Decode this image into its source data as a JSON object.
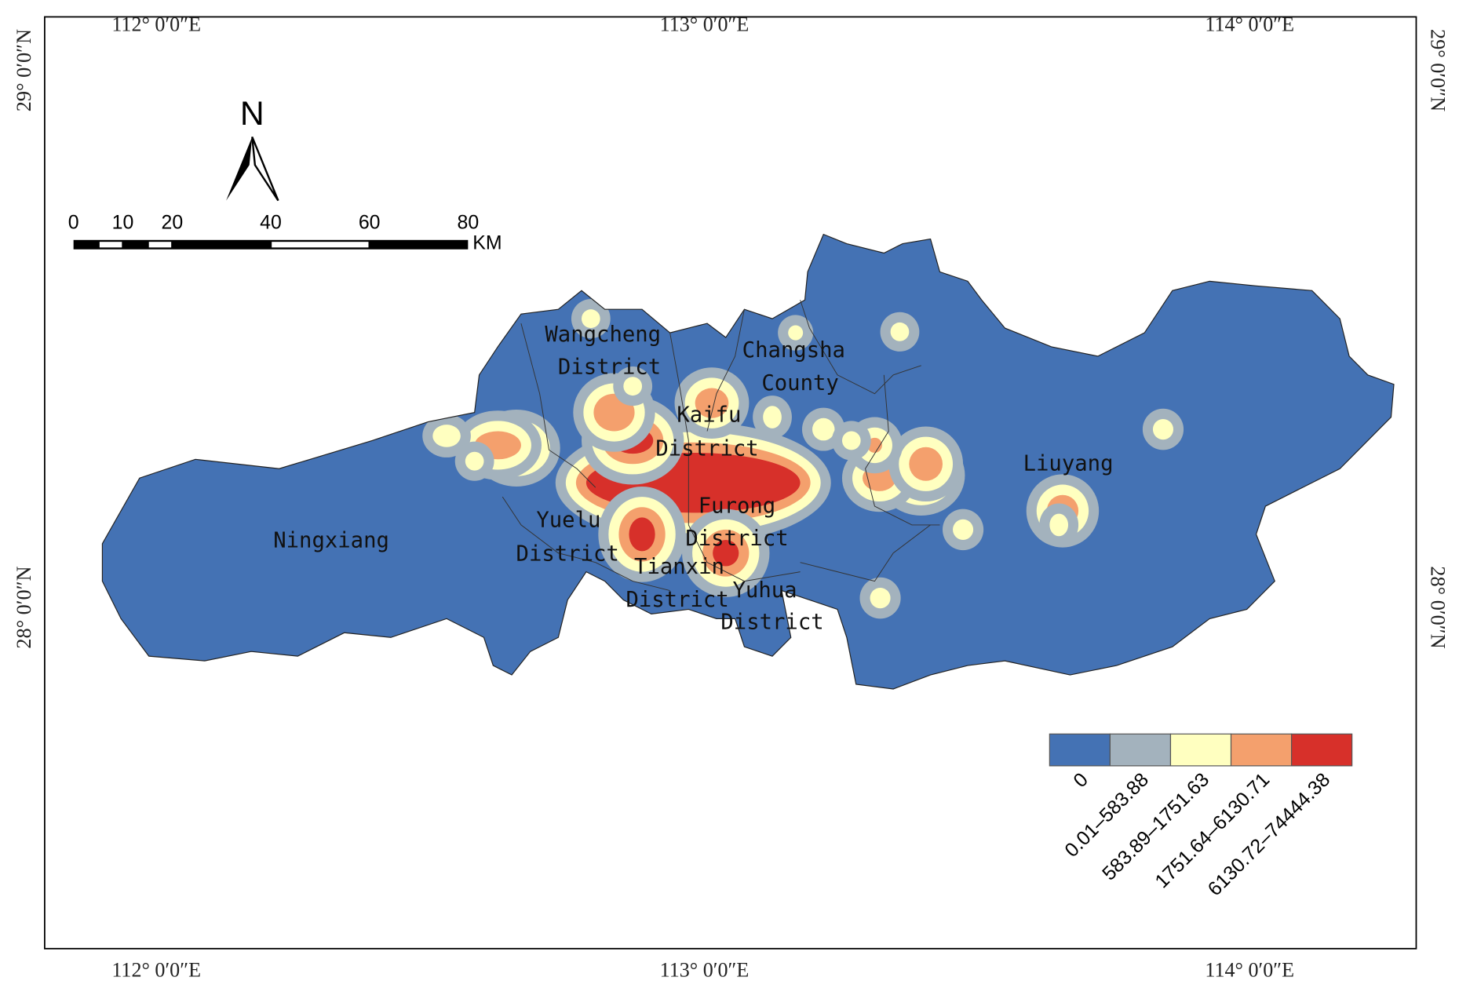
{
  "map": {
    "top_labels": [
      "112° 0′0″E",
      "113° 0′0″E",
      "114° 0′0″E"
    ],
    "bottom_labels": [
      "112° 0′0″E",
      "113° 0′0″E",
      "114° 0′0″E"
    ],
    "left_labels": [
      "29° 0′0″N",
      "28° 0′0″N"
    ],
    "right_labels": [
      "29° 0′0″N",
      "28° 0′0″N"
    ],
    "north": "N",
    "scale_bar": {
      "ticks": [
        "0",
        "10",
        "20",
        "40",
        "60",
        "80"
      ],
      "unit": "KM"
    },
    "districts": [
      {
        "lines": [
          "Wangcheng",
          "District"
        ]
      },
      {
        "lines": [
          "Changsha",
          "County"
        ]
      },
      {
        "lines": [
          "Kaifu",
          "District"
        ]
      },
      {
        "lines": [
          "Ningxiang"
        ]
      },
      {
        "lines": [
          "Yuelu",
          "District"
        ]
      },
      {
        "lines": [
          "Furong",
          "District"
        ]
      },
      {
        "lines": [
          "Tianxin",
          "District"
        ]
      },
      {
        "lines": [
          "Yuhua",
          "District"
        ]
      },
      {
        "lines": [
          "Liuyang"
        ]
      }
    ],
    "legend": {
      "classes": [
        {
          "label": "0",
          "color": "#4472b4"
        },
        {
          "label": "0.01–583.88",
          "color": "#a3b2bd"
        },
        {
          "label": "583.89–1751.63",
          "color": "#ffffc0"
        },
        {
          "label": "1751.64–6130.71",
          "color": "#f4a06d"
        },
        {
          "label": "6130.72–74444.38",
          "color": "#d7302a"
        }
      ]
    }
  }
}
